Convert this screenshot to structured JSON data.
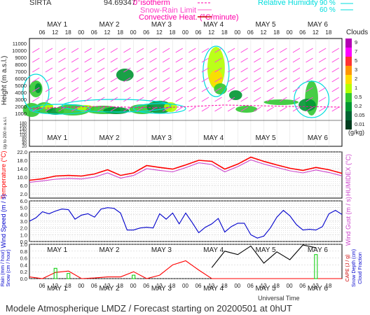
{
  "header": {
    "site": "SIRTA",
    "coords": "94.69347",
    "legend_isotherm": "0°isotherm",
    "legend_snowrain": "Snow-Rain Limit",
    "legend_convective": "Convective Heat. (°C/minute)",
    "legend_rh": "Relative Humidity",
    "rh_90": "90 %",
    "rh_60": "60 %"
  },
  "footer": {
    "model_line": "Modele Atmospherique LMDZ / Forecast starting on 20200501 at 0hUT",
    "time_axis_title": "Universal Time"
  },
  "days": [
    "MAY 1",
    "MAY 2",
    "MAY 3",
    "MAY 4",
    "MAY 5",
    "MAY 6"
  ],
  "hour_ticks": [
    "06",
    "12",
    "18",
    "00",
    "06",
    "12",
    "18",
    "00",
    "06",
    "12",
    "18",
    "00",
    "06",
    "12",
    "18",
    "00",
    "06",
    "12",
    "18",
    "00",
    "06",
    "12",
    "18"
  ],
  "clouds_scale": {
    "title": "Clouds",
    "unit": "(g/kg)",
    "levels": [
      "9",
      "7",
      "5",
      "3",
      "2",
      "1",
      "0.5",
      "0.2",
      "0.05",
      "0.01"
    ],
    "colors": [
      "#b400b4",
      "#ff00ff",
      "#ff3232",
      "#ff9600",
      "#ffdc00",
      "#b4ff00",
      "#32c832",
      "#009632",
      "#006432",
      "#003c1e"
    ]
  },
  "panel_labels": {
    "height": "Height (m a.s.l.)",
    "low_height": "Up to 200 m a.s.l.",
    "temperature": "Temperature (°C)",
    "humidex": "HUMIDEX (°C)",
    "wind_speed": "Wind Speed (m / s)",
    "wind_gust": "Wind Gust (m / s)",
    "rain": "Rain (mm / hour)",
    "snow": "Snow (cm / hour)",
    "cape": "CAPE (J / g)",
    "snow_depth": "Snow Depth (cm)",
    "cloud_fraction": "Cloud Fraction"
  },
  "chart_data": [
    {
      "type": "heatmap",
      "title": "Cloud water profile",
      "ylabel": "Height (m a.s.l.)",
      "yticks": [
        11000,
        10000,
        9000,
        8000,
        7000,
        6000,
        5000,
        4000,
        3000,
        2000,
        1000
      ],
      "ylim": [
        0,
        11500
      ],
      "low_yticks": [
        180,
        160,
        140,
        120,
        100,
        80,
        60,
        40,
        20
      ],
      "x": "hours from 2020-05-01 00 UT"
    },
    {
      "type": "line",
      "title": "Temperature",
      "ylabel": "Temperature (°C)",
      "yticks": [
        22.0,
        18.0,
        14.0,
        10.0,
        6.0,
        2.0
      ],
      "ylim": [
        0,
        22
      ],
      "x": [
        0,
        6,
        12,
        18,
        24,
        30,
        36,
        42,
        48,
        54,
        60,
        66,
        72,
        78,
        84,
        90,
        96,
        102,
        108,
        114,
        120,
        126,
        132,
        138,
        144
      ],
      "series": [
        {
          "name": "Temperature",
          "color": "#ff0000",
          "values": [
            8.5,
            9.2,
            10.5,
            10.8,
            10.5,
            11.5,
            13.5,
            10.8,
            12.0,
            15.5,
            14.6,
            13.8,
            15.8,
            18.0,
            17.5,
            13.8,
            16.2,
            19.5,
            17.5,
            15.8,
            14.2,
            13.2,
            14.6,
            13.5,
            11.8
          ]
        },
        {
          "name": "HUMIDEX",
          "color": "#cc44cc",
          "values": [
            7.5,
            8.2,
            9.0,
            9.4,
            9.1,
            10.0,
            12.0,
            9.5,
            10.8,
            14.0,
            13.2,
            12.5,
            14.5,
            16.8,
            16.0,
            12.5,
            15.0,
            18.2,
            16.2,
            14.6,
            13.0,
            12.0,
            13.4,
            12.2,
            10.6
          ]
        }
      ]
    },
    {
      "type": "line",
      "title": "Wind speed",
      "ylabel": "Wind Speed (m / s)",
      "yticks": [
        6.0,
        5.0,
        4.0,
        3.0,
        2.0,
        1.0,
        0.0
      ],
      "ylim": [
        0,
        6
      ],
      "x": [
        0,
        3,
        6,
        9,
        12,
        15,
        18,
        21,
        24,
        27,
        30,
        33,
        36,
        39,
        42,
        45,
        48,
        51,
        54,
        57,
        60,
        63,
        66,
        69,
        72,
        75,
        78,
        81,
        84,
        87,
        90,
        93,
        96,
        99,
        102,
        105,
        108,
        111,
        114,
        117,
        120,
        123,
        126,
        129,
        132,
        135,
        138,
        141,
        144
      ],
      "series": [
        {
          "name": "Wind Speed",
          "color": "#0000cc",
          "values": [
            3.0,
            3.5,
            4.4,
            4.1,
            4.5,
            4.8,
            4.7,
            3.3,
            3.9,
            4.1,
            3.6,
            4.8,
            5.0,
            4.9,
            4.2,
            1.7,
            1.7,
            2.0,
            2.1,
            2.0,
            4.1,
            3.3,
            4.2,
            2.6,
            4.2,
            2.8,
            1.3,
            2.1,
            2.6,
            3.4,
            1.4,
            2.2,
            2.7,
            2.7,
            1.0,
            0.5,
            0.8,
            2.0,
            3.6,
            4.6,
            3.8,
            2.5,
            1.7,
            1.8,
            1.7,
            2.2,
            4.1,
            4.6,
            4.0
          ]
        }
      ]
    },
    {
      "type": "line",
      "title": "Precipitation and cloud fraction",
      "ylabel": "Rain (mm / hour)",
      "yticks": [
        1.0,
        0.8,
        0.6,
        0.4,
        0.2,
        0.0
      ],
      "ylim": [
        0,
        1
      ],
      "x": [
        0,
        6,
        12,
        18,
        24,
        30,
        36,
        42,
        48,
        54,
        60,
        66,
        72,
        78,
        84,
        90,
        96,
        102,
        108,
        114,
        120,
        126,
        132,
        138,
        144
      ],
      "series": [
        {
          "name": "Rain",
          "color": "#ff0000",
          "values": [
            0.05,
            0.0,
            0.18,
            0.22,
            0.0,
            0.02,
            0.05,
            0.05,
            0.2,
            0.0,
            0.1,
            0.4,
            0.52,
            0.25,
            0.0,
            0.0,
            0.0,
            0.0,
            0.0,
            0.0,
            0.0,
            0.0,
            0.0,
            0.0,
            0.0
          ]
        },
        {
          "name": "Cloud Fraction",
          "color": "#000000",
          "values": [
            null,
            null,
            null,
            null,
            null,
            null,
            null,
            null,
            null,
            null,
            null,
            null,
            null,
            null,
            0.32,
            0.8,
            0.7,
            0.95,
            0.45,
            0.78,
            0.55,
            0.98,
            0.9,
            null,
            null
          ]
        },
        {
          "name": "Snow",
          "color": "#00cc00",
          "values": [
            0.0,
            0.0,
            0.3,
            0.15,
            0.0,
            0.0,
            0.0,
            0.0,
            0.1,
            0.0,
            0.0,
            0.0,
            0.0,
            0.0,
            0.0,
            0.0,
            0.0,
            0.0,
            0.0,
            0.0,
            0.0,
            0.0,
            0.7,
            0.0,
            0.0
          ]
        }
      ]
    }
  ]
}
